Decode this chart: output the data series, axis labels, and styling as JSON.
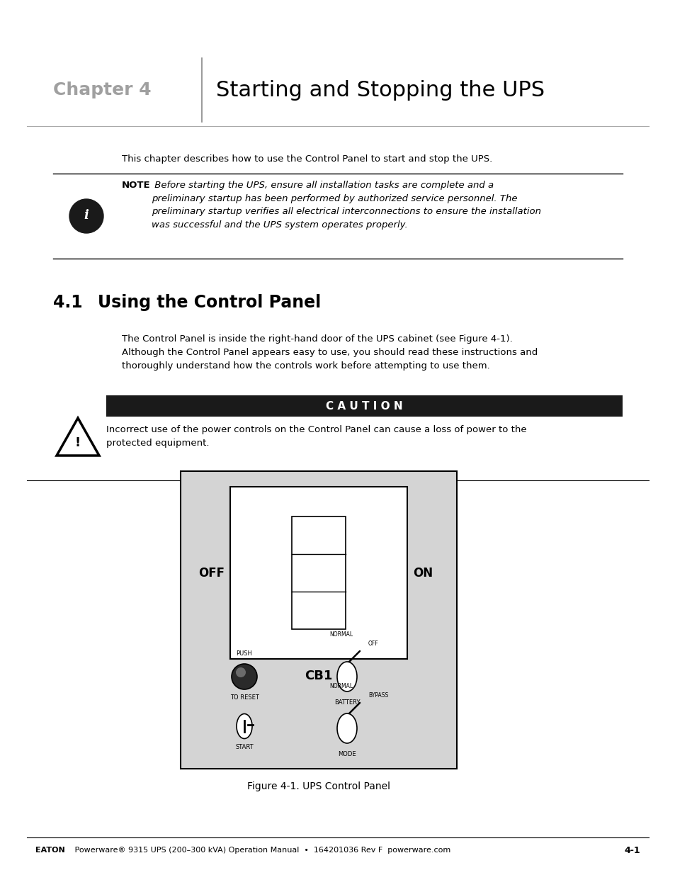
{
  "page_width": 9.54,
  "page_height": 12.35,
  "bg_color": "#ffffff",
  "chapter_label": "Chapter 4",
  "chapter_title": "Starting and Stopping the UPS",
  "chapter_label_color": "#a0a0a0",
  "chapter_title_color": "#000000",
  "intro_text": "This chapter describes how to use the Control Panel to start and stop the UPS.",
  "note_bold": "NOTE",
  "note_text": " Before starting the UPS, ensure all installation tasks are complete and a\npreliminary startup has been performed by authorized service personnel. The\npreliminary startup verifies all electrical interconnections to ensure the installation\nwas successful and the UPS system operates properly.",
  "section_number": "4.1",
  "section_title": "Using the Control Panel",
  "section_body": "The Control Panel is inside the right-hand door of the UPS cabinet (see Figure 4-1).\nAlthough the Control Panel appears easy to use, you should read these instructions and\nthoroughly understand how the controls work before attempting to use them.",
  "caution_title": "C A U T I O N",
  "caution_bg": "#1a1a1a",
  "caution_text_color": "#ffffff",
  "caution_body": "Incorrect use of the power controls on the Control Panel can cause a loss of power to the\nprotected equipment.",
  "figure_caption": "Figure 4-1. UPS Control Panel",
  "footer_eaton": "EATON",
  "footer_rest": " Powerware® 9315 UPS (200–300 kVA) Operation Manual  •  164201036 Rev F  powerware.com",
  "footer_right": "4-1",
  "panel_bg": "#d4d4d4",
  "panel_border": "#000000"
}
